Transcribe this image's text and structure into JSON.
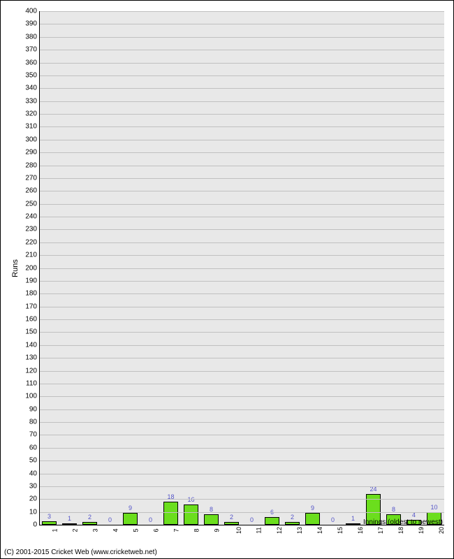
{
  "chart": {
    "type": "bar",
    "ylabel": "Runs",
    "xlabel": "Innings (oldest to newest)",
    "ylim": [
      0,
      400
    ],
    "ytick_step": 10,
    "categories": [
      "1",
      "2",
      "3",
      "4",
      "5",
      "6",
      "7",
      "8",
      "9",
      "10",
      "11",
      "12",
      "13",
      "14",
      "15",
      "16",
      "17",
      "18",
      "19",
      "20"
    ],
    "values": [
      3,
      1,
      2,
      0,
      9,
      0,
      18,
      16,
      8,
      2,
      0,
      6,
      2,
      9,
      0,
      1,
      24,
      8,
      4,
      10
    ],
    "bar_color": "#6bde1d",
    "bar_border_color": "#000000",
    "label_color": "#5454c8",
    "background_color": "#e8e8e8",
    "grid_color": "#c0c0c0",
    "bar_width": 0.7,
    "label_fontsize": 11,
    "tick_fontsize": 10,
    "value_label_fontsize": 9
  },
  "copyright": "(C) 2001-2015 Cricket Web (www.cricketweb.net)"
}
